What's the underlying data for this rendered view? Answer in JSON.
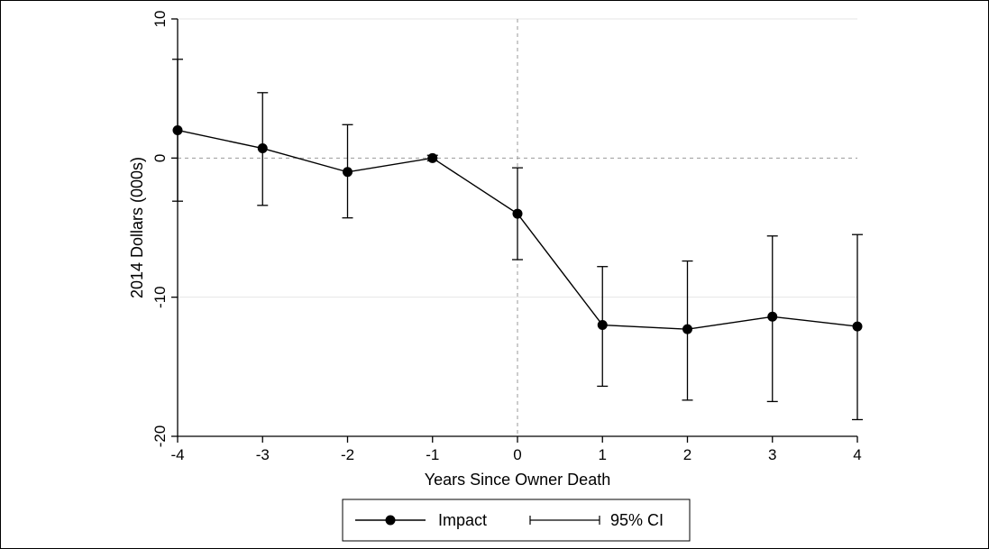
{
  "chart_data": {
    "type": "line",
    "xlabel": "Years Since Owner Death",
    "ylabel": "2014 Dollars (000s)",
    "xlim": [
      -4,
      4
    ],
    "ylim": [
      -20,
      10
    ],
    "xticks": [
      -4,
      -3,
      -2,
      -1,
      0,
      1,
      2,
      3,
      4
    ],
    "yticks": [
      10,
      0,
      -10,
      -20
    ],
    "grid": "horizontal",
    "reference_lines": {
      "x": 0,
      "y": 0
    },
    "legend_position": "bottom-center",
    "series": [
      {
        "name": "Impact",
        "x": [
          -4,
          -3,
          -2,
          -1,
          0,
          1,
          2,
          3,
          4
        ],
        "y": [
          2.0,
          0.7,
          -1.0,
          0.0,
          -4.0,
          -12.0,
          -12.3,
          -11.4,
          -12.1
        ]
      }
    ],
    "ci": {
      "name": "95% CI",
      "lower": [
        -3.1,
        -3.4,
        -4.3,
        -0.2,
        -7.3,
        -16.4,
        -17.4,
        -17.5,
        -18.8
      ],
      "upper": [
        7.1,
        4.7,
        2.4,
        0.2,
        -0.7,
        -7.8,
        -7.4,
        -5.6,
        -5.5
      ]
    }
  }
}
